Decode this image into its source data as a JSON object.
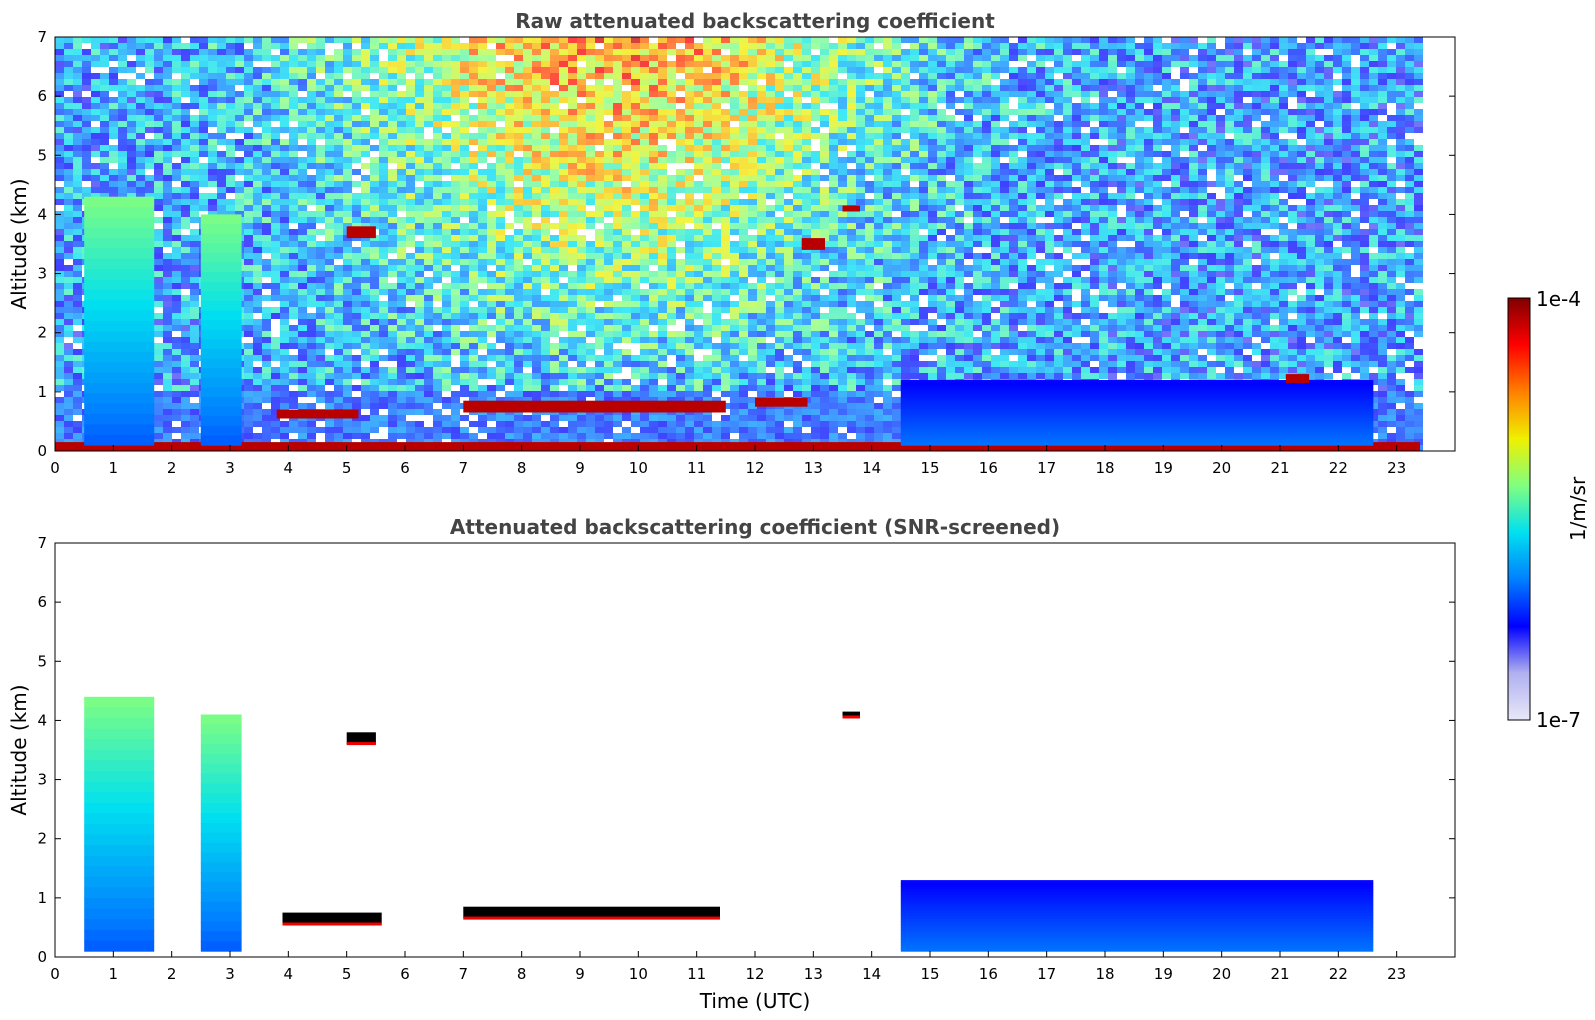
{
  "chart_data": [
    {
      "type": "heatmap",
      "title": "Raw attenuated backscattering coefficient",
      "xlabel": "",
      "ylabel": "Altitude (km)",
      "xlim": [
        0,
        24
      ],
      "ylim": [
        0,
        7
      ],
      "x_ticks": [
        "0",
        "1",
        "2",
        "3",
        "4",
        "5",
        "6",
        "7",
        "8",
        "9",
        "10",
        "11",
        "12",
        "13",
        "14",
        "15",
        "16",
        "17",
        "18",
        "19",
        "20",
        "21",
        "22",
        "23"
      ],
      "y_ticks": [
        "0",
        "1",
        "2",
        "3",
        "4",
        "5",
        "6",
        "7"
      ],
      "grid": false,
      "data_end_time": 23.4,
      "features": [
        {
          "kind": "surface layer",
          "start": 0,
          "end": 23.4,
          "altitude_km": [
            0.0,
            0.15
          ],
          "level": "very high"
        },
        {
          "kind": "low cloud layer",
          "start": 3.8,
          "end": 5.2,
          "altitude_km": [
            0.55,
            0.7
          ],
          "level": "very high"
        },
        {
          "kind": "low cloud layer",
          "start": 7.0,
          "end": 11.5,
          "altitude_km": [
            0.65,
            0.85
          ],
          "level": "very high"
        },
        {
          "kind": "low cloud layer",
          "start": 12.0,
          "end": 12.9,
          "altitude_km": [
            0.75,
            0.9
          ],
          "level": "very high"
        },
        {
          "kind": "aerosol plume",
          "start": 0.5,
          "end": 1.7,
          "altitude_km": [
            0.1,
            4.3
          ],
          "level": "medium-high"
        },
        {
          "kind": "aerosol plume",
          "start": 2.5,
          "end": 3.2,
          "altitude_km": [
            0.1,
            4.0
          ],
          "level": "medium-high"
        },
        {
          "kind": "boundary layer",
          "start": 14.5,
          "end": 22.6,
          "altitude_km": [
            0.1,
            1.2
          ],
          "level": "medium"
        },
        {
          "kind": "elevated cloud",
          "start": 5.0,
          "end": 5.5,
          "altitude_km": [
            3.6,
            3.8
          ],
          "level": "very high"
        },
        {
          "kind": "elevated cloud",
          "start": 13.5,
          "end": 13.8,
          "altitude_km": [
            4.05,
            4.15
          ],
          "level": "very high"
        },
        {
          "kind": "elevated cloud",
          "start": 12.8,
          "end": 13.2,
          "altitude_km": [
            3.4,
            3.6
          ],
          "level": "very high"
        },
        {
          "kind": "elevated cloud",
          "start": 21.1,
          "end": 21.5,
          "altitude_km": [
            1.15,
            1.3
          ],
          "level": "very high"
        }
      ]
    },
    {
      "type": "heatmap",
      "title": "Attenuated backscattering coefficient (SNR-screened)",
      "xlabel": "Time (UTC)",
      "ylabel": "Altitude (km)",
      "xlim": [
        0,
        24
      ],
      "ylim": [
        0,
        7
      ],
      "x_ticks": [
        "0",
        "1",
        "2",
        "3",
        "4",
        "5",
        "6",
        "7",
        "8",
        "9",
        "10",
        "11",
        "12",
        "13",
        "14",
        "15",
        "16",
        "17",
        "18",
        "19",
        "20",
        "21",
        "22",
        "23"
      ],
      "y_ticks": [
        "0",
        "1",
        "2",
        "3",
        "4",
        "5",
        "6",
        "7"
      ],
      "grid": false,
      "data_end_time": 23.4,
      "features": [
        {
          "kind": "aerosol plume",
          "start": 0.5,
          "end": 1.7,
          "altitude_km": [
            0.1,
            4.4
          ],
          "level": "medium-high"
        },
        {
          "kind": "aerosol plume",
          "start": 2.5,
          "end": 3.2,
          "altitude_km": [
            0.1,
            4.1
          ],
          "level": "medium-high"
        },
        {
          "kind": "low cloud layer",
          "start": 3.9,
          "end": 5.6,
          "altitude_km": [
            0.55,
            0.75
          ],
          "level": "saturated"
        },
        {
          "kind": "low cloud layer",
          "start": 7.0,
          "end": 11.4,
          "altitude_km": [
            0.65,
            0.85
          ],
          "level": "saturated"
        },
        {
          "kind": "boundary layer",
          "start": 14.5,
          "end": 22.6,
          "altitude_km": [
            0.1,
            1.3
          ],
          "level": "medium"
        },
        {
          "kind": "elevated cloud",
          "start": 5.0,
          "end": 5.5,
          "altitude_km": [
            3.6,
            3.8
          ],
          "level": "saturated"
        },
        {
          "kind": "elevated cloud",
          "start": 13.5,
          "end": 13.8,
          "altitude_km": [
            4.05,
            4.15
          ],
          "level": "saturated"
        }
      ]
    }
  ],
  "colorbar": {
    "label": "1/m/sr",
    "max_label": "1e-4",
    "min_label": "1e-7",
    "scale": "log",
    "colormap": "jet",
    "stops": [
      "#e8e8f8",
      "#b0b0f0",
      "#0000ff",
      "#0080ff",
      "#00e0f0",
      "#80ff80",
      "#f0f000",
      "#ff8000",
      "#ff0000",
      "#800000"
    ]
  }
}
